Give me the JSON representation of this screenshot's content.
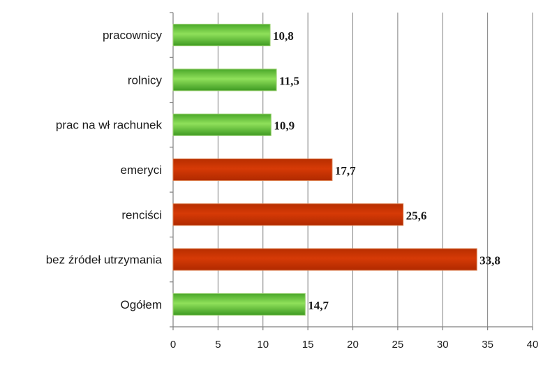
{
  "chart_data": {
    "type": "bar",
    "orientation": "horizontal",
    "categories": [
      "pracownicy",
      "rolnicy",
      "prac na wł rachunek",
      "emeryci",
      "renciści",
      "bez źródeł utrzymania",
      "Ogółem"
    ],
    "values": [
      10.8,
      11.5,
      10.9,
      17.7,
      25.6,
      33.8,
      14.7
    ],
    "value_labels": [
      "10,8",
      "11,5",
      "10,9",
      "17,7",
      "25,6",
      "33,8",
      "14,7"
    ],
    "bar_colors": [
      "#5fc232",
      "#5fc232",
      "#5fc232",
      "#cc3300",
      "#cc3300",
      "#cc3300",
      "#5fc232"
    ],
    "xlim": [
      0,
      40
    ],
    "x_ticks": [
      0,
      5,
      10,
      15,
      20,
      25,
      30,
      35,
      40
    ],
    "x_tick_labels": [
      "0",
      "5",
      "10",
      "15",
      "20",
      "25",
      "30",
      "35",
      "40"
    ],
    "title": "",
    "xlabel": "",
    "ylabel": "",
    "grid": true,
    "legend": "none"
  }
}
